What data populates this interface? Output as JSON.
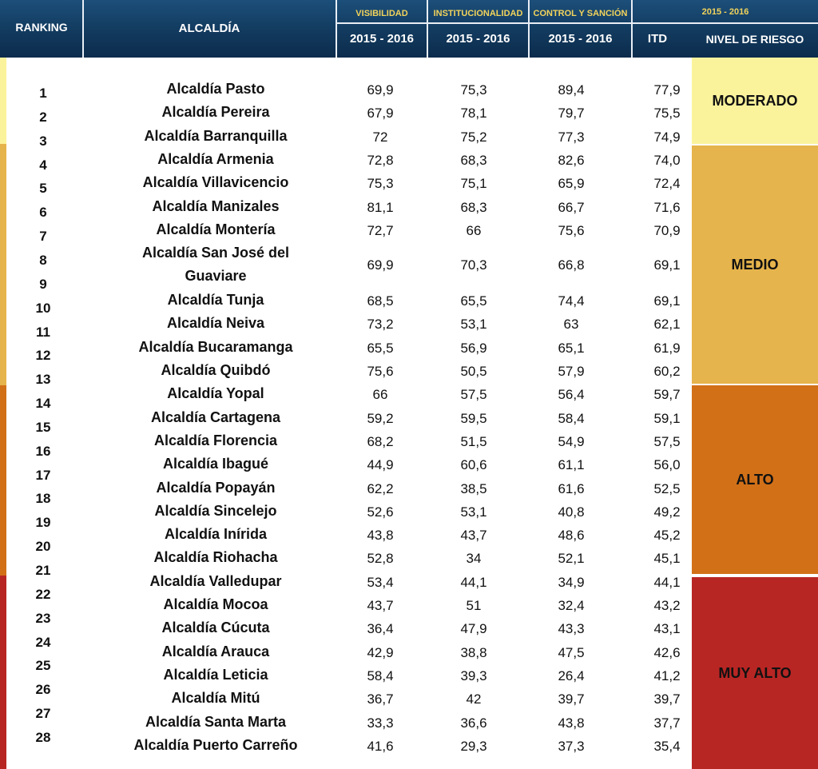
{
  "header": {
    "ranking": "RANKING",
    "alcaldia": "ALCALDÍA",
    "visibilidad": "VISIBILIDAD",
    "institucionalidad": "INSTITUCIONALIDAD",
    "control": "CONTROL Y SANCIÓN",
    "period_top": "2015 - 2016",
    "period_vis": "2015 - 2016",
    "period_inst": "2015 - 2016",
    "period_ctrl": "2015 - 2016",
    "itd": "ITD",
    "nivel": "NIVEL DE  RIESGO"
  },
  "ranks": [
    "1",
    "2",
    "3",
    "4",
    "5",
    "6",
    "7",
    "8",
    "9",
    "10",
    "11",
    "12",
    "13",
    "14",
    "15",
    "16",
    "17",
    "18",
    "19",
    "20",
    "21",
    "22",
    "23",
    "24",
    "25",
    "26",
    "27",
    "28"
  ],
  "rows": [
    {
      "name": "Alcaldía Pasto",
      "vis": "69,9",
      "inst": "75,3",
      "ctrl": "89,4",
      "itd": "77,9"
    },
    {
      "name": "Alcaldía Pereira",
      "vis": "67,9",
      "inst": "78,1",
      "ctrl": "79,7",
      "itd": "75,5"
    },
    {
      "name": "Alcaldía Barranquilla",
      "vis": "72",
      "inst": "75,2",
      "ctrl": "77,3",
      "itd": "74,9"
    },
    {
      "name": "Alcaldía Armenia",
      "vis": "72,8",
      "inst": "68,3",
      "ctrl": "82,6",
      "itd": "74,0"
    },
    {
      "name": "Alcaldía Villavicencio",
      "vis": "75,3",
      "inst": "75,1",
      "ctrl": "65,9",
      "itd": "72,4"
    },
    {
      "name": "Alcaldía Manizales",
      "vis": "81,1",
      "inst": "68,3",
      "ctrl": "66,7",
      "itd": "71,6"
    },
    {
      "name": "Alcaldía Montería",
      "vis": "72,7",
      "inst": "66",
      "ctrl": "75,6",
      "itd": "70,9"
    },
    {
      "name": "Alcaldía San José del",
      "name2": "Guaviare",
      "vis": "69,9",
      "inst": "70,3",
      "ctrl": "66,8",
      "itd": "69,1"
    },
    {
      "name": "Alcaldía Tunja",
      "vis": "68,5",
      "inst": "65,5",
      "ctrl": "74,4",
      "itd": "69,1"
    },
    {
      "name": "Alcaldía Neiva",
      "vis": "73,2",
      "inst": "53,1",
      "ctrl": "63",
      "itd": "62,1"
    },
    {
      "name": "Alcaldía Bucaramanga",
      "vis": "65,5",
      "inst": "56,9",
      "ctrl": "65,1",
      "itd": "61,9"
    },
    {
      "name": "Alcaldía Quibdó",
      "vis": "75,6",
      "inst": "50,5",
      "ctrl": "57,9",
      "itd": "60,2"
    },
    {
      "name": "Alcaldía Yopal",
      "vis": "66",
      "inst": "57,5",
      "ctrl": "56,4",
      "itd": "59,7"
    },
    {
      "name": "Alcaldía Cartagena",
      "vis": "59,2",
      "inst": "59,5",
      "ctrl": "58,4",
      "itd": "59,1"
    },
    {
      "name": "Alcaldía Florencia",
      "vis": "68,2",
      "inst": "51,5",
      "ctrl": "54,9",
      "itd": "57,5"
    },
    {
      "name": "Alcaldía Ibagué",
      "vis": "44,9",
      "inst": "60,6",
      "ctrl": "61,1",
      "itd": "56,0"
    },
    {
      "name": "Alcaldía Popayán",
      "vis": "62,2",
      "inst": "38,5",
      "ctrl": "61,6",
      "itd": "52,5"
    },
    {
      "name": "Alcaldía Sincelejo",
      "vis": "52,6",
      "inst": "53,1",
      "ctrl": "40,8",
      "itd": "49,2"
    },
    {
      "name": "Alcaldía Inírida",
      "vis": "43,8",
      "inst": "43,7",
      "ctrl": "48,6",
      "itd": "45,2"
    },
    {
      "name": "Alcaldía Riohacha",
      "vis": "52,8",
      "inst": "34",
      "ctrl": "52,1",
      "itd": "45,1"
    },
    {
      "name": "Alcaldía Valledupar",
      "vis": "53,4",
      "inst": "44,1",
      "ctrl": "34,9",
      "itd": "44,1"
    },
    {
      "name": "Alcaldía Mocoa",
      "vis": "43,7",
      "inst": "51",
      "ctrl": "32,4",
      "itd": "43,2"
    },
    {
      "name": "Alcaldía Cúcuta",
      "vis": "36,4",
      "inst": "47,9",
      "ctrl": "43,3",
      "itd": "43,1"
    },
    {
      "name": "Alcaldía Arauca",
      "vis": "42,9",
      "inst": "38,8",
      "ctrl": "47,5",
      "itd": "42,6"
    },
    {
      "name": "Alcaldía Leticia",
      "vis": "58,4",
      "inst": "39,3",
      "ctrl": "26,4",
      "itd": "41,2"
    },
    {
      "name": "Alcaldía Mitú",
      "vis": "36,7",
      "inst": "42",
      "ctrl": "39,7",
      "itd": "39,7"
    },
    {
      "name": "Alcaldía Santa Marta",
      "vis": "33,3",
      "inst": "36,6",
      "ctrl": "43,8",
      "itd": "37,7"
    },
    {
      "name": "Alcaldía Puerto Carreño",
      "vis": "41,6",
      "inst": "29,3",
      "ctrl": "37,3",
      "itd": "35,4"
    }
  ],
  "risk": [
    {
      "label": "MODERADO",
      "color": "#fbf39c"
    },
    {
      "label": "MEDIO",
      "color": "#e6b44c"
    },
    {
      "label": "ALTO",
      "color": "#d27018"
    },
    {
      "label": "MUY ALTO",
      "color": "#b82624"
    }
  ],
  "colors": {
    "header_bg": "#123a5e",
    "header_accent": "#f2d35b"
  }
}
